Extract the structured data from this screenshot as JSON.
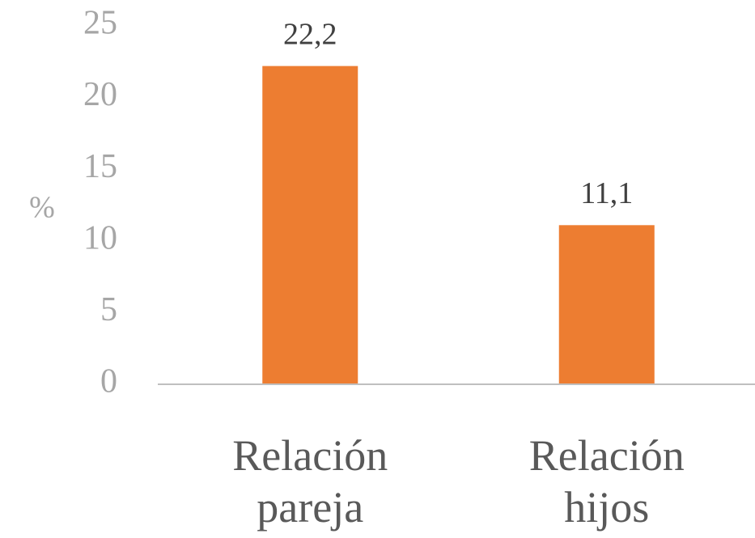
{
  "chart_data": {
    "type": "bar",
    "y_label": "%",
    "categories": [
      "Relación pareja",
      "Relación hijos"
    ],
    "values": [
      22.2,
      11.1
    ],
    "value_labels": [
      "22,2",
      "11,1"
    ],
    "color": "#ed7d31",
    "ylim": [
      0,
      25
    ],
    "yticks": [
      0,
      5,
      10,
      15,
      20,
      25
    ],
    "grid": false
  }
}
